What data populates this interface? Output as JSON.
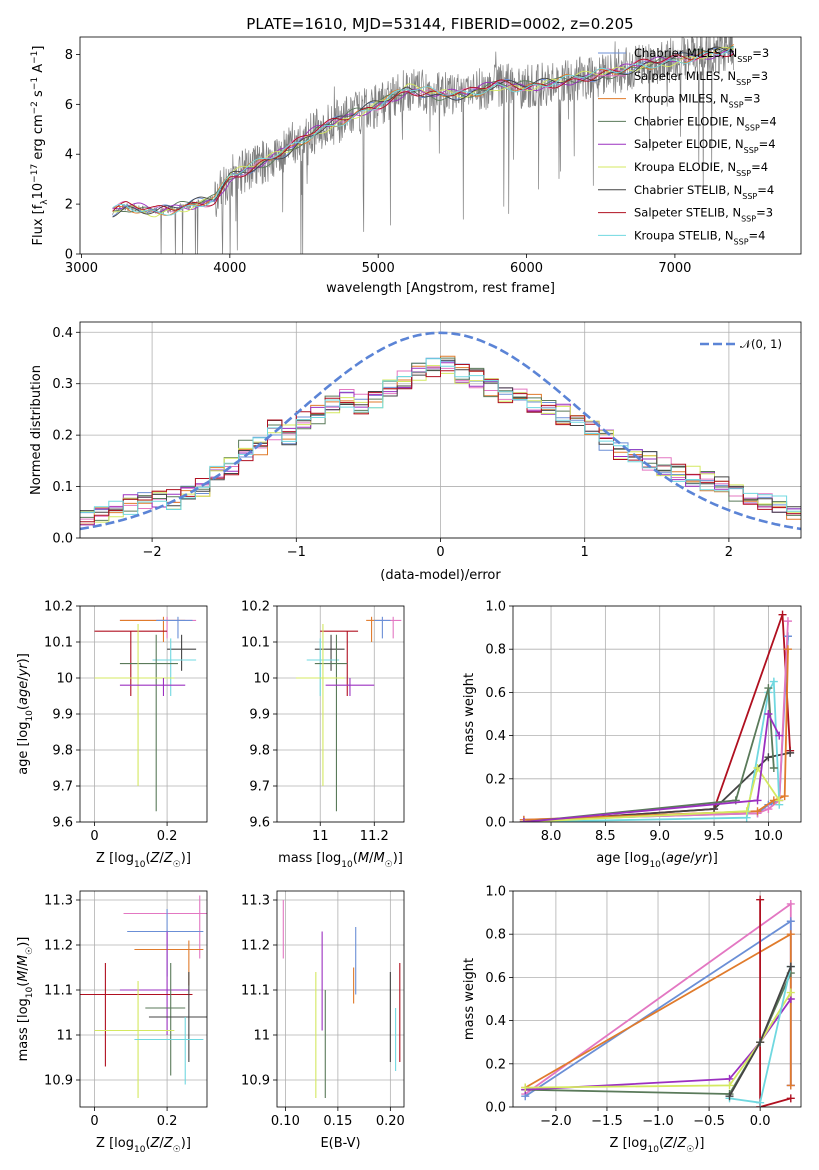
{
  "title": "PLATE=1610, MJD=53144, FIBERID=0002, z=0.205",
  "colors": {
    "chabrier_miles": "#6b8fd6",
    "salpeter_miles": "#e377c2",
    "kroupa_miles": "#e07b2c",
    "chabrier_elodie": "#5a7a5a",
    "salpeter_elodie": "#9b30c0",
    "kroupa_elodie": "#d4e860",
    "chabrier_stelib": "#444444",
    "salpeter_stelib": "#b01020",
    "kroupa_stelib": "#70d8e0",
    "data": "#7f7f7f",
    "normal": "#5b84d6"
  },
  "chart_data": [
    {
      "id": "spectrum",
      "type": "line",
      "xlabel": "wavelength [Angstrom, rest frame]",
      "ylabel": "Flux [f_λ 10^-17 erg cm^-2 s^-1 A^-1]",
      "xlim": [
        2990,
        7850
      ],
      "ylim": [
        0,
        8.7
      ],
      "xticks": [
        3000,
        4000,
        5000,
        6000,
        7000
      ],
      "yticks": [
        0,
        2,
        4,
        6,
        8
      ],
      "grid": false,
      "legend_position": "top-right",
      "legend": [
        {
          "label": "Chabrier MILES, N_SSP=3",
          "key": "chabrier_miles"
        },
        {
          "label": "Salpeter MILES, N_SSP=3",
          "key": "salpeter_miles"
        },
        {
          "label": "Kroupa MILES, N_SSP=3",
          "key": "kroupa_miles"
        },
        {
          "label": "Chabrier ELODIE, N_SSP=4",
          "key": "chabrier_elodie"
        },
        {
          "label": "Salpeter ELODIE, N_SSP=4",
          "key": "salpeter_elodie"
        },
        {
          "label": "Kroupa ELODIE, N_SSP=4",
          "key": "kroupa_elodie"
        },
        {
          "label": "Chabrier STELIB, N_SSP=4",
          "key": "chabrier_stelib"
        },
        {
          "label": "Salpeter STELIB, N_SSP=3",
          "key": "salpeter_stelib"
        },
        {
          "label": "Kroupa STELIB, N_SSP=4",
          "key": "kroupa_stelib"
        }
      ],
      "continuum": {
        "x": [
          3200,
          3300,
          3500,
          3700,
          3900,
          4000,
          4200,
          4400,
          4600,
          4800,
          5000,
          5200,
          5400,
          5600,
          5800,
          6000,
          6200,
          6400,
          6600,
          6800,
          7000,
          7200,
          7400
        ],
        "y": [
          1.7,
          1.9,
          1.7,
          1.9,
          2.2,
          3.1,
          3.6,
          4.2,
          5.0,
          5.5,
          6.0,
          6.6,
          6.4,
          6.4,
          6.8,
          6.7,
          6.9,
          7.1,
          7.3,
          7.6,
          7.8,
          8.0,
          8.2
        ]
      }
    },
    {
      "id": "residuals",
      "type": "line",
      "xlabel": "(data-model)/error",
      "ylabel": "Normed distribution",
      "xlim": [
        -2.5,
        2.5
      ],
      "ylim": [
        0,
        0.42
      ],
      "xticks": [
        -2,
        -1,
        0,
        1,
        2
      ],
      "xticklabels": [
        "−2",
        "−1",
        "0",
        "1",
        "2"
      ],
      "yticks": [
        0.0,
        0.1,
        0.2,
        0.3,
        0.4
      ],
      "yticklabels": [
        "0.0",
        "0.1",
        "0.2",
        "0.3",
        "0.4"
      ],
      "grid": true,
      "legend_position": "top-right",
      "legend_label": "𝒩(0, 1)",
      "bin_width": 0.1,
      "bin_start": -2.5,
      "base_hist": [
        0.035,
        0.05,
        0.06,
        0.065,
        0.075,
        0.08,
        0.075,
        0.09,
        0.1,
        0.12,
        0.14,
        0.17,
        0.18,
        0.21,
        0.2,
        0.23,
        0.24,
        0.26,
        0.27,
        0.26,
        0.27,
        0.29,
        0.31,
        0.32,
        0.33,
        0.34,
        0.32,
        0.31,
        0.29,
        0.28,
        0.27,
        0.26,
        0.25,
        0.24,
        0.22,
        0.21,
        0.19,
        0.17,
        0.16,
        0.15,
        0.14,
        0.13,
        0.12,
        0.11,
        0.1,
        0.09,
        0.085,
        0.075,
        0.065,
        0.05
      ]
    },
    {
      "id": "age-vs-Z",
      "type": "scatter",
      "xlabel": "Z [log10(Z/Z☉)]",
      "ylabel": "age [log10(age/yr)]",
      "xlim": [
        -0.04,
        0.31
      ],
      "ylim": [
        9.6,
        10.2
      ],
      "xticks": [
        0.0,
        0.2
      ],
      "yticks": [
        9.6,
        9.7,
        9.8,
        9.9,
        10.0,
        10.1,
        10.2
      ],
      "grid": true,
      "points": [
        {
          "key": "salpeter_miles",
          "x": 0.2,
          "y": 10.16,
          "xerr": [
            0.13,
            0.08
          ],
          "yerr": [
            0.05,
            0.01
          ]
        },
        {
          "key": "kroupa_miles",
          "x": 0.19,
          "y": 10.16,
          "xerr": [
            0.12,
            0.06
          ],
          "yerr": [
            0.06,
            0.01
          ]
        },
        {
          "key": "chabrier_miles",
          "x": 0.23,
          "y": 10.16,
          "xerr": [
            0.06,
            0.04
          ],
          "yerr": [
            0.05,
            0.01
          ]
        },
        {
          "key": "salpeter_stelib",
          "x": 0.1,
          "y": 10.13,
          "xerr": [
            0.1,
            0.1
          ],
          "yerr": [
            0.18,
            0.0
          ]
        },
        {
          "key": "chabrier_stelib",
          "x": 0.24,
          "y": 10.08,
          "xerr": [
            0.04,
            0.04
          ],
          "yerr": [
            0.06,
            0.04
          ]
        },
        {
          "key": "kroupa_stelib",
          "x": 0.21,
          "y": 10.05,
          "xerr": [
            0.05,
            0.07
          ],
          "yerr": [
            0.1,
            0.06
          ]
        },
        {
          "key": "chabrier_elodie",
          "x": 0.17,
          "y": 10.04,
          "xerr": [
            0.1,
            0.06
          ],
          "yerr": [
            0.41,
            0.08
          ]
        },
        {
          "key": "kroupa_elodie",
          "x": 0.12,
          "y": 10.0,
          "xerr": [
            0.12,
            0.1
          ],
          "yerr": [
            0.3,
            0.15
          ]
        },
        {
          "key": "salpeter_elodie",
          "x": 0.19,
          "y": 9.98,
          "xerr": [
            0.12,
            0.06
          ],
          "yerr": [
            0.03,
            0.02
          ]
        }
      ]
    },
    {
      "id": "age-vs-mass",
      "type": "scatter",
      "xlabel": "mass [log10(M/M☉)]",
      "ylabel": "",
      "xlim": [
        10.84,
        11.31
      ],
      "ylim": [
        9.6,
        10.2
      ],
      "xticks": [
        11.0,
        11.2
      ],
      "yticks": [
        9.6,
        9.7,
        9.8,
        9.9,
        10.0,
        10.1,
        10.2
      ],
      "grid": true,
      "points": [
        {
          "key": "salpeter_miles",
          "x": 11.27,
          "y": 10.16,
          "xerr": [
            0.05,
            0.03
          ],
          "yerr": [
            0.05,
            0.01
          ]
        },
        {
          "key": "kroupa_miles",
          "x": 11.19,
          "y": 10.16,
          "xerr": [
            0.02,
            0.03
          ],
          "yerr": [
            0.06,
            0.01
          ]
        },
        {
          "key": "chabrier_miles",
          "x": 11.23,
          "y": 10.16,
          "xerr": [
            0.03,
            0.03
          ],
          "yerr": [
            0.05,
            0.01
          ]
        },
        {
          "key": "salpeter_stelib",
          "x": 11.1,
          "y": 10.13,
          "xerr": [
            0.1,
            0.04
          ],
          "yerr": [
            0.18,
            0.0
          ]
        },
        {
          "key": "chabrier_stelib",
          "x": 11.04,
          "y": 10.08,
          "xerr": [
            0.06,
            0.05
          ],
          "yerr": [
            0.06,
            0.04
          ]
        },
        {
          "key": "kroupa_stelib",
          "x": 11.0,
          "y": 10.05,
          "xerr": [
            0.05,
            0.07
          ],
          "yerr": [
            0.1,
            0.06
          ]
        },
        {
          "key": "chabrier_elodie",
          "x": 11.06,
          "y": 10.04,
          "xerr": [
            0.08,
            0.04
          ],
          "yerr": [
            0.41,
            0.08
          ]
        },
        {
          "key": "kroupa_elodie",
          "x": 11.01,
          "y": 10.0,
          "xerr": [
            0.1,
            0.08
          ],
          "yerr": [
            0.3,
            0.15
          ]
        },
        {
          "key": "salpeter_elodie",
          "x": 11.11,
          "y": 9.98,
          "xerr": [
            0.09,
            0.09
          ],
          "yerr": [
            0.03,
            0.02
          ]
        }
      ]
    },
    {
      "id": "massweight-vs-age",
      "type": "line",
      "xlabel": "age [log10(age/yr)]",
      "ylabel": "mass weight",
      "xlim": [
        7.65,
        10.3
      ],
      "ylim": [
        0,
        1.0
      ],
      "xticks": [
        8.0,
        8.5,
        9.0,
        9.5,
        10.0
      ],
      "xticklabels": [
        "8.0",
        "8.5",
        "9.0",
        "9.5",
        "10.0"
      ],
      "yticks": [
        0.0,
        0.2,
        0.4,
        0.6,
        0.8,
        1.0
      ],
      "yticklabels": [
        "0.0",
        "0.2",
        "0.4",
        "0.6",
        "0.8",
        "1.0"
      ],
      "grid": true,
      "series": [
        {
          "key": "salpeter_stelib",
          "x": [
            7.75,
            9.5,
            10.13,
            10.2
          ],
          "y": [
            0.0,
            0.06,
            0.96,
            0.33
          ]
        },
        {
          "key": "chabrier_stelib",
          "x": [
            7.75,
            9.5,
            10.0,
            10.2
          ],
          "y": [
            0.0,
            0.06,
            0.3,
            0.32
          ]
        },
        {
          "key": "chabrier_miles",
          "x": [
            7.75,
            9.9,
            10.0,
            10.1,
            10.18
          ],
          "y": [
            0.01,
            0.04,
            0.08,
            0.1,
            0.86
          ]
        },
        {
          "key": "salpeter_miles",
          "x": [
            7.75,
            9.9,
            10.0,
            10.1,
            10.18
          ],
          "y": [
            0.01,
            0.04,
            0.06,
            0.1,
            0.93
          ]
        },
        {
          "key": "kroupa_miles",
          "x": [
            7.75,
            9.9,
            10.05,
            10.15,
            10.18
          ],
          "y": [
            0.01,
            0.05,
            0.1,
            0.12,
            0.8
          ]
        },
        {
          "key": "kroupa_stelib",
          "x": [
            7.75,
            9.8,
            10.0,
            10.05,
            10.1
          ],
          "y": [
            0.0,
            0.02,
            0.6,
            0.65,
            0.08
          ]
        },
        {
          "key": "chabrier_elodie",
          "x": [
            7.75,
            9.7,
            10.0,
            10.05
          ],
          "y": [
            0.0,
            0.1,
            0.62,
            0.25
          ]
        },
        {
          "key": "kroupa_elodie",
          "x": [
            7.75,
            9.8,
            9.9,
            10.1
          ],
          "y": [
            0.0,
            0.05,
            0.25,
            0.1
          ]
        },
        {
          "key": "salpeter_elodie",
          "x": [
            7.75,
            9.9,
            10.0,
            10.1
          ],
          "y": [
            0.0,
            0.1,
            0.5,
            0.4
          ]
        }
      ]
    },
    {
      "id": "mass-vs-Z",
      "type": "scatter",
      "xlabel": "Z [log10(Z/Z☉)]",
      "ylabel": "mass [log10(M/M☉)]",
      "xlim": [
        -0.04,
        0.31
      ],
      "ylim": [
        10.84,
        11.32
      ],
      "xticks": [
        0.0,
        0.2
      ],
      "yticks": [
        10.9,
        11.0,
        11.1,
        11.2,
        11.3
      ],
      "grid": true,
      "points": [
        {
          "key": "salpeter_miles",
          "x": 0.29,
          "y": 11.27,
          "xerr": [
            0.21,
            0.02
          ],
          "yerr": [
            0.1,
            0.04
          ]
        },
        {
          "key": "chabrier_miles",
          "x": 0.2,
          "y": 11.23,
          "xerr": [
            0.11,
            0.1
          ],
          "yerr": [
            0.1,
            0.05
          ]
        },
        {
          "key": "kroupa_miles",
          "x": 0.26,
          "y": 11.19,
          "xerr": [
            0.15,
            0.04
          ],
          "yerr": [
            0.08,
            0.02
          ]
        },
        {
          "key": "salpeter_elodie",
          "x": 0.2,
          "y": 11.1,
          "xerr": [
            0.13,
            0.06
          ],
          "yerr": [
            0.1,
            0.13
          ]
        },
        {
          "key": "salpeter_stelib",
          "x": 0.03,
          "y": 11.09,
          "xerr": [
            0.1,
            0.24
          ],
          "yerr": [
            0.16,
            0.07
          ]
        },
        {
          "key": "chabrier_elodie",
          "x": 0.21,
          "y": 11.06,
          "xerr": [
            0.07,
            0.04
          ],
          "yerr": [
            0.15,
            0.1
          ]
        },
        {
          "key": "chabrier_stelib",
          "x": 0.26,
          "y": 11.04,
          "xerr": [
            0.11,
            0.05
          ],
          "yerr": [
            0.1,
            0.1
          ]
        },
        {
          "key": "kroupa_elodie",
          "x": 0.12,
          "y": 11.01,
          "xerr": [
            0.12,
            0.1
          ],
          "yerr": [
            0.15,
            0.11
          ]
        },
        {
          "key": "kroupa_stelib",
          "x": 0.25,
          "y": 10.99,
          "xerr": [
            0.14,
            0.05
          ],
          "yerr": [
            0.1,
            0.05
          ]
        }
      ]
    },
    {
      "id": "mass-vs-ebv",
      "type": "scatter",
      "xlabel": "E(B-V)",
      "ylabel": "",
      "xlim": [
        0.092,
        0.213
      ],
      "ylim": [
        10.84,
        11.32
      ],
      "xticks": [
        0.1,
        0.15,
        0.2
      ],
      "xticklabels": [
        "0.10",
        "0.15",
        "0.20"
      ],
      "yticks": [
        10.9,
        11.0,
        11.1,
        11.2,
        11.3
      ],
      "grid": true,
      "points": [
        {
          "key": "salpeter_miles",
          "x": 0.098,
          "y": 11.24,
          "yerr": [
            0.07,
            0.06
          ]
        },
        {
          "key": "chabrier_miles",
          "x": 0.167,
          "y": 11.19,
          "yerr": [
            0.1,
            0.05
          ]
        },
        {
          "key": "salpeter_elodie",
          "x": 0.135,
          "y": 11.12,
          "yerr": [
            0.11,
            0.11
          ]
        },
        {
          "key": "kroupa_miles",
          "x": 0.165,
          "y": 11.11,
          "yerr": [
            0.04,
            0.04
          ]
        },
        {
          "key": "chabrier_stelib",
          "x": 0.2,
          "y": 11.04,
          "yerr": [
            0.1,
            0.1
          ]
        },
        {
          "key": "salpeter_stelib",
          "x": 0.209,
          "y": 11.05,
          "yerr": [
            0.11,
            0.11
          ]
        },
        {
          "key": "kroupa_elodie",
          "x": 0.129,
          "y": 11.0,
          "yerr": [
            0.14,
            0.14
          ]
        },
        {
          "key": "chabrier_elodie",
          "x": 0.138,
          "y": 10.98,
          "yerr": [
            0.12,
            0.12
          ]
        },
        {
          "key": "kroupa_stelib",
          "x": 0.205,
          "y": 10.99,
          "yerr": [
            0.07,
            0.07
          ]
        }
      ]
    },
    {
      "id": "massweight-vs-Z",
      "type": "line",
      "xlabel": "Z [log10(Z/Z☉)]",
      "ylabel": "mass weight",
      "xlim": [
        -2.42,
        0.4
      ],
      "ylim": [
        0,
        1.0
      ],
      "xticks": [
        -2.0,
        -1.5,
        -1.0,
        -0.5,
        0.0
      ],
      "xticklabels": [
        "−2.0",
        "−1.5",
        "−1.0",
        "−0.5",
        "0.0"
      ],
      "yticks": [
        0.0,
        0.2,
        0.4,
        0.6,
        0.8,
        1.0
      ],
      "yticklabels": [
        "0.0",
        "0.2",
        "0.4",
        "0.6",
        "0.8",
        "1.0"
      ],
      "grid": true,
      "series": [
        {
          "key": "salpeter_miles",
          "x": [
            -2.3,
            0.3,
            0.3
          ],
          "y": [
            0.06,
            0.94,
            0.1
          ]
        },
        {
          "key": "chabrier_miles",
          "x": [
            -2.3,
            0.3,
            0.3
          ],
          "y": [
            0.05,
            0.86,
            0.1
          ]
        },
        {
          "key": "kroupa_miles",
          "x": [
            -2.3,
            0.3,
            0.3
          ],
          "y": [
            0.09,
            0.8,
            0.1
          ]
        },
        {
          "key": "salpeter_stelib",
          "x": [
            0.0,
            0.0,
            0.3
          ],
          "y": [
            0.96,
            0.0,
            0.04
          ]
        },
        {
          "key": "chabrier_elodie",
          "x": [
            -2.3,
            -0.3,
            0.0,
            0.3
          ],
          "y": [
            0.08,
            0.06,
            0.3,
            0.62
          ]
        },
        {
          "key": "salpeter_elodie",
          "x": [
            -2.3,
            -0.3,
            0.0,
            0.3
          ],
          "y": [
            0.08,
            0.13,
            0.3,
            0.5
          ]
        },
        {
          "key": "kroupa_elodie",
          "x": [
            -2.3,
            -0.3,
            0.0,
            0.3
          ],
          "y": [
            0.09,
            0.1,
            0.3,
            0.53
          ]
        },
        {
          "key": "kroupa_stelib",
          "x": [
            -0.3,
            0.0,
            0.3
          ],
          "y": [
            0.04,
            0.02,
            0.65
          ]
        },
        {
          "key": "chabrier_stelib",
          "x": [
            -0.3,
            0.0,
            0.3
          ],
          "y": [
            0.05,
            0.3,
            0.65
          ]
        }
      ]
    }
  ]
}
